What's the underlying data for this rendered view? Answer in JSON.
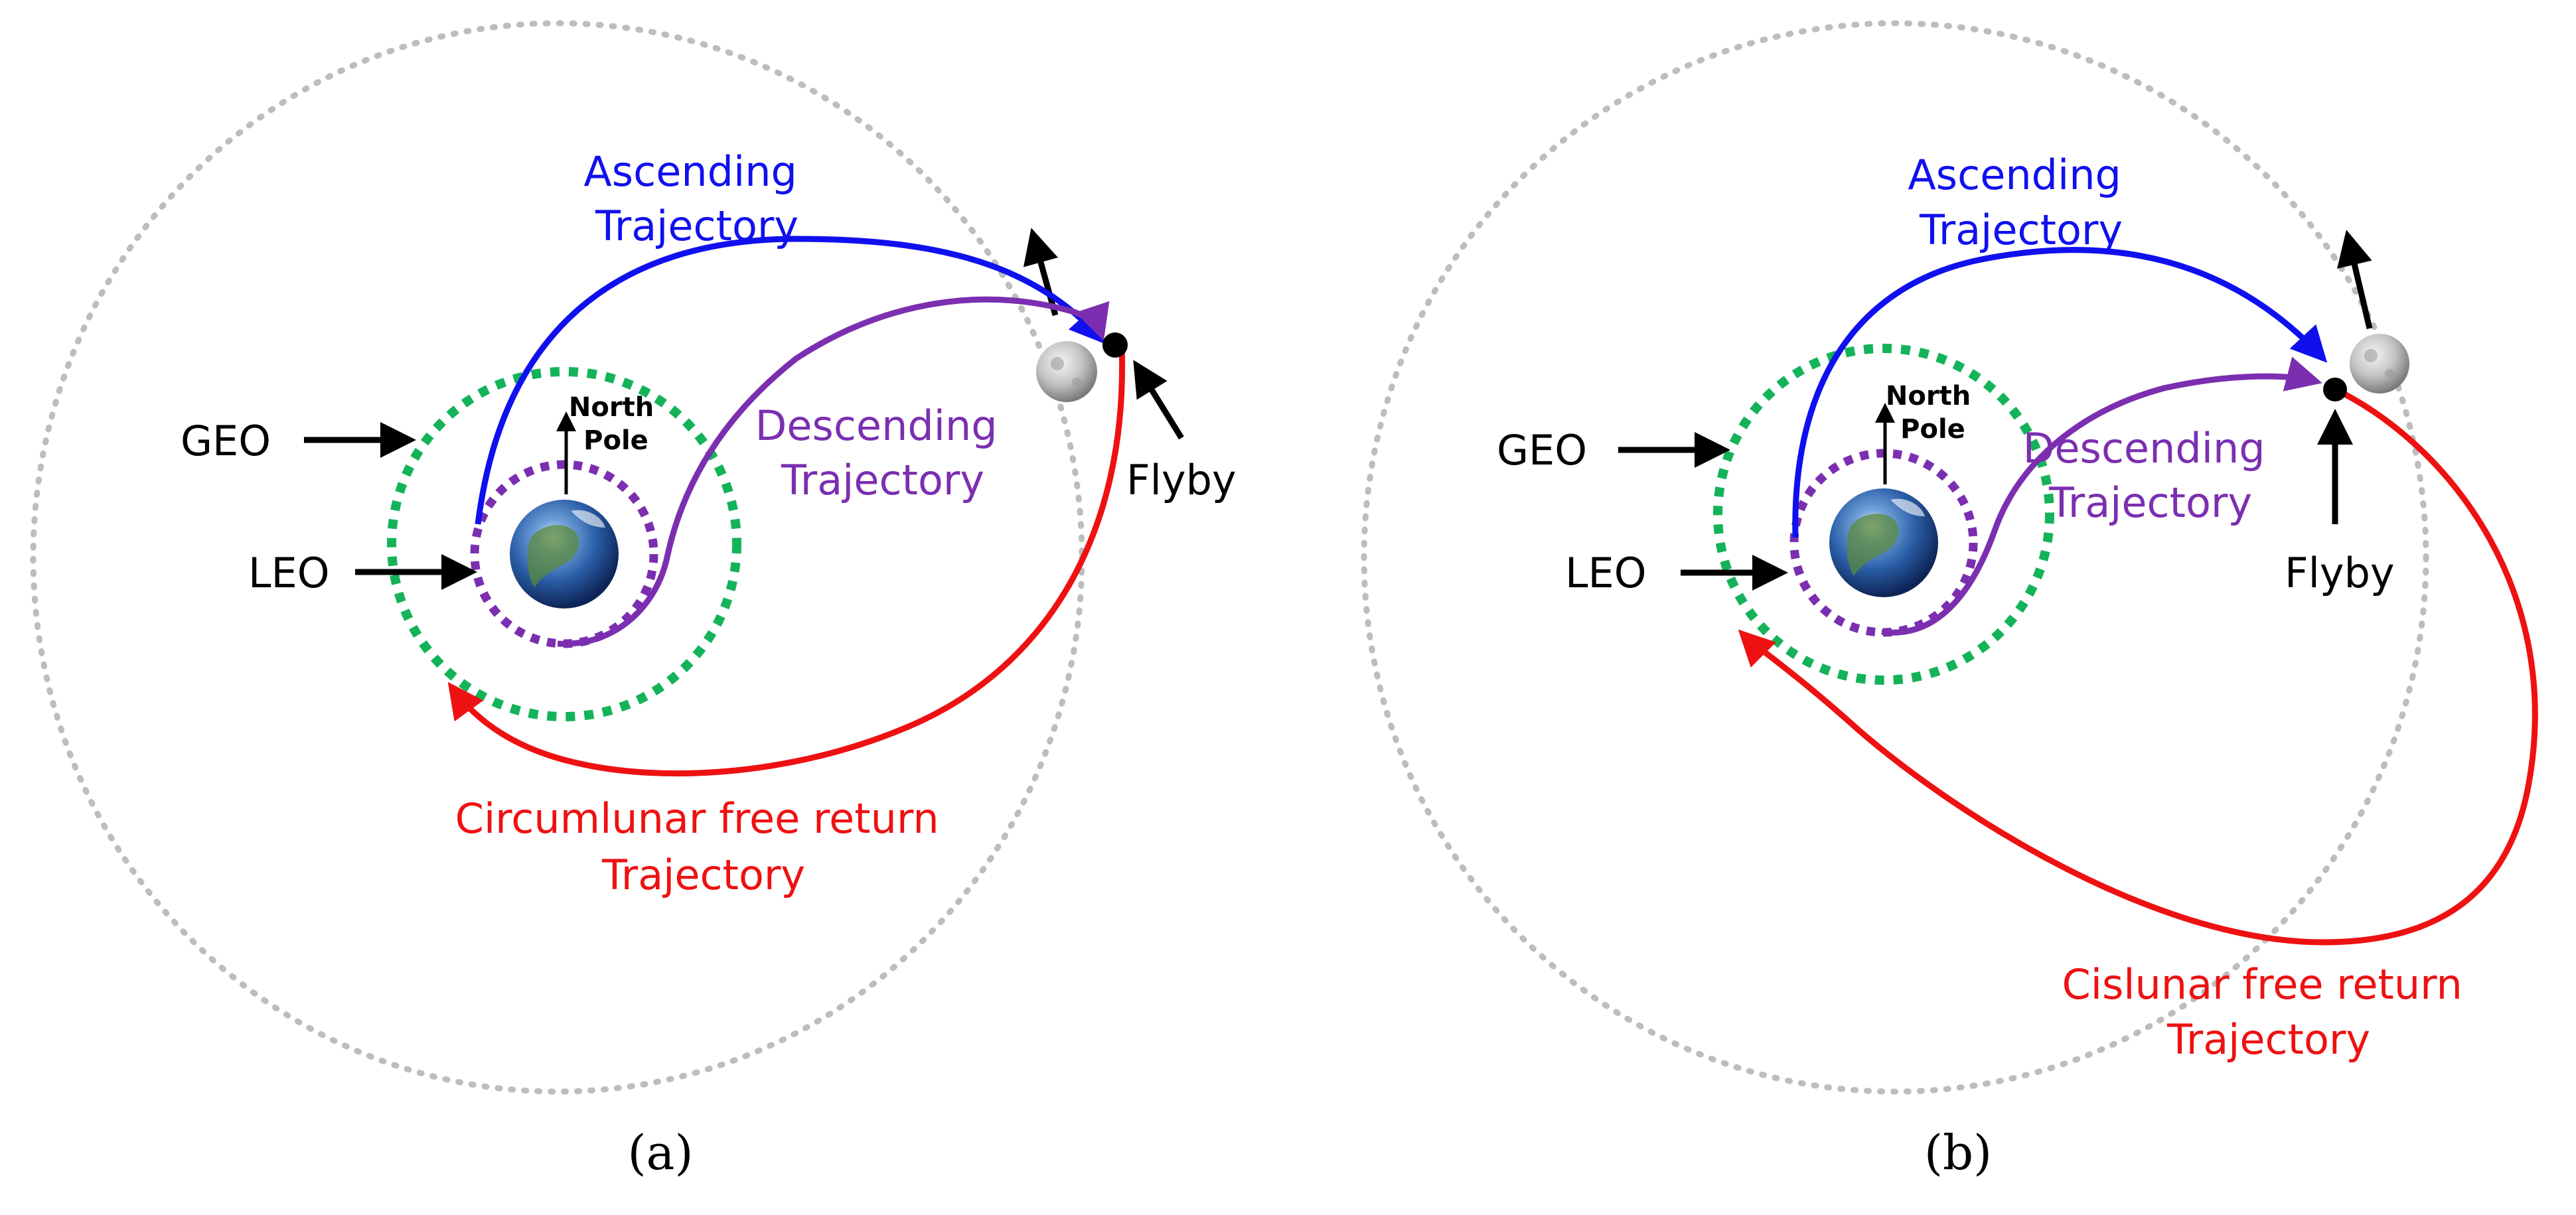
{
  "colors": {
    "ascending": "#1010ee",
    "descending": "#7b2fb0",
    "free_return": "#ee1111",
    "geo_orbit": "#14b35a",
    "leo_orbit": "#7b2fb0",
    "moon_orbit": "#bdbdbd",
    "arrow": "#000000"
  },
  "panel_a": {
    "ascending": [
      "Ascending",
      "Trajectory"
    ],
    "descending": [
      "Descending",
      "Trajectory"
    ],
    "free_return": [
      "Circumlunar free return",
      "Trajectory"
    ],
    "geo": "GEO",
    "leo": "LEO",
    "north_pole": [
      "North",
      "Pole"
    ],
    "flyby": "Flyby",
    "caption": "(a)"
  },
  "panel_b": {
    "ascending": [
      "Ascending",
      "Trajectory"
    ],
    "descending": [
      "Descending",
      "Trajectory"
    ],
    "free_return": [
      "Cislunar free return",
      "Trajectory"
    ],
    "geo": "GEO",
    "leo": "LEO",
    "north_pole": [
      "North",
      "Pole"
    ],
    "flyby": "Flyby",
    "caption": "(b)"
  }
}
